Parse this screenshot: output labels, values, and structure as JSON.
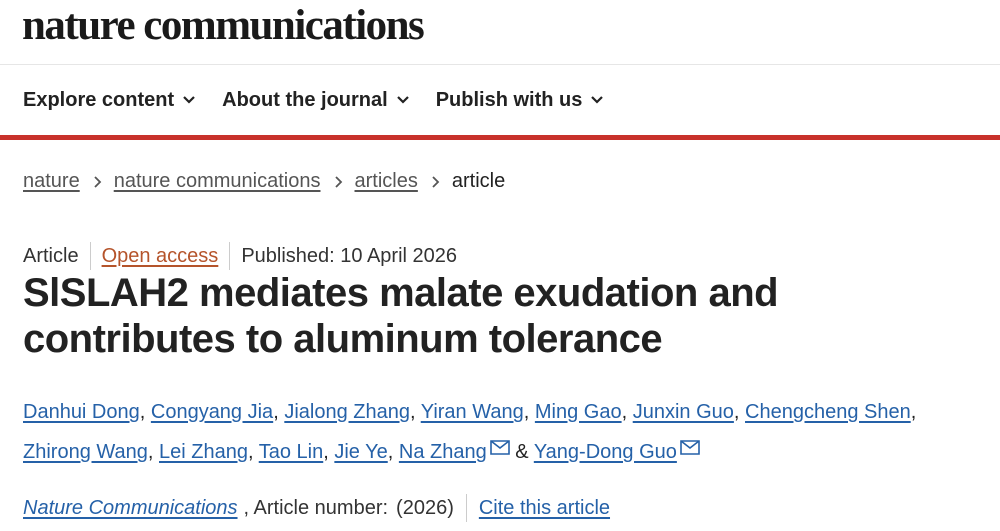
{
  "header": {
    "logo": "nature communications"
  },
  "nav": {
    "items": [
      {
        "label": "Explore content",
        "icon": "chevron-down-icon"
      },
      {
        "label": "About the journal",
        "icon": "chevron-down-icon"
      },
      {
        "label": "Publish with us",
        "icon": "chevron-down-icon"
      }
    ]
  },
  "breadcrumb": {
    "items": [
      "nature",
      "nature communications",
      "articles"
    ],
    "current": "article"
  },
  "article": {
    "type": "Article",
    "access": "Open access",
    "published": "Published: 10 April 2026",
    "title": "SlSLAH2 mediates malate exudation and contributes to aluminum tolerance",
    "authors": [
      "Danhui Dong",
      "Congyang Jia",
      "Jialong Zhang",
      "Yiran Wang",
      "Ming Gao",
      "Junxin Guo",
      "Chengcheng Shen",
      "Zhirong Wang",
      "Lei Zhang",
      "Tao Lin",
      "Jie Ye",
      "Na Zhang",
      "Yang-Dong Guo"
    ],
    "author_separator": ", ",
    "author_last_separator": " & ",
    "journal": "Nature Communications",
    "article_number_label": ", Article number:",
    "year": "(2026)",
    "cite_label": "Cite this article"
  },
  "colors": {
    "accent_red": "#c8312b",
    "link_blue": "#2561a8",
    "open_access": "#b5542b"
  }
}
